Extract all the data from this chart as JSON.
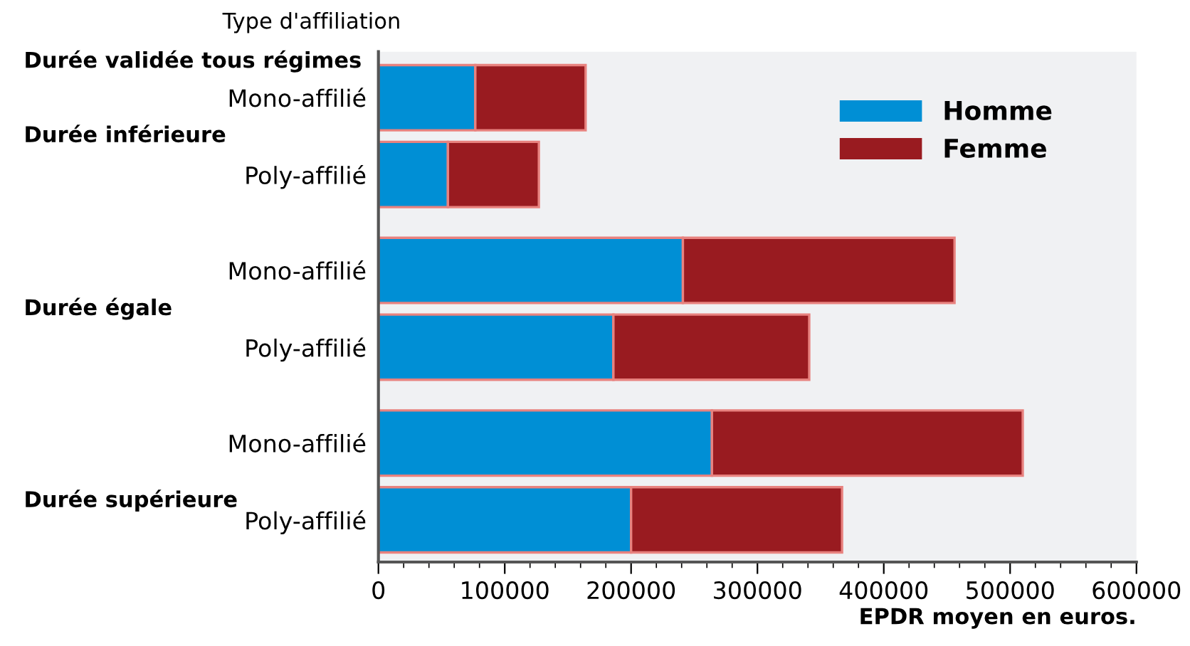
{
  "chart_data": {
    "type": "bar",
    "orientation": "horizontal",
    "stacked": true,
    "categories": [
      "Mono-affilié",
      "Poly-affilié",
      "Mono-affilié",
      "Poly-affilié",
      "Mono-affilié",
      "Poly-affilié"
    ],
    "series": [
      {
        "name": "Homme",
        "color": "#008fd5",
        "values": [
          76700,
          55000,
          241000,
          186000,
          264000,
          200000
        ]
      },
      {
        "name": "Femme",
        "color": "#991b20",
        "values": [
          87300,
          72000,
          215000,
          155000,
          246000,
          167000
        ]
      }
    ],
    "xlim": [
      0,
      600000
    ],
    "xticks": [
      0,
      100000,
      200000,
      300000,
      400000,
      500000,
      600000
    ],
    "xlabel": "EPDR moyen en euros.",
    "annotations": [
      "Type d'affiliation",
      "Durée validée tous régimes",
      "Durée inférieure",
      "Durée égale",
      "Durée supérieure"
    ],
    "legend": "top right",
    "grid": false
  }
}
